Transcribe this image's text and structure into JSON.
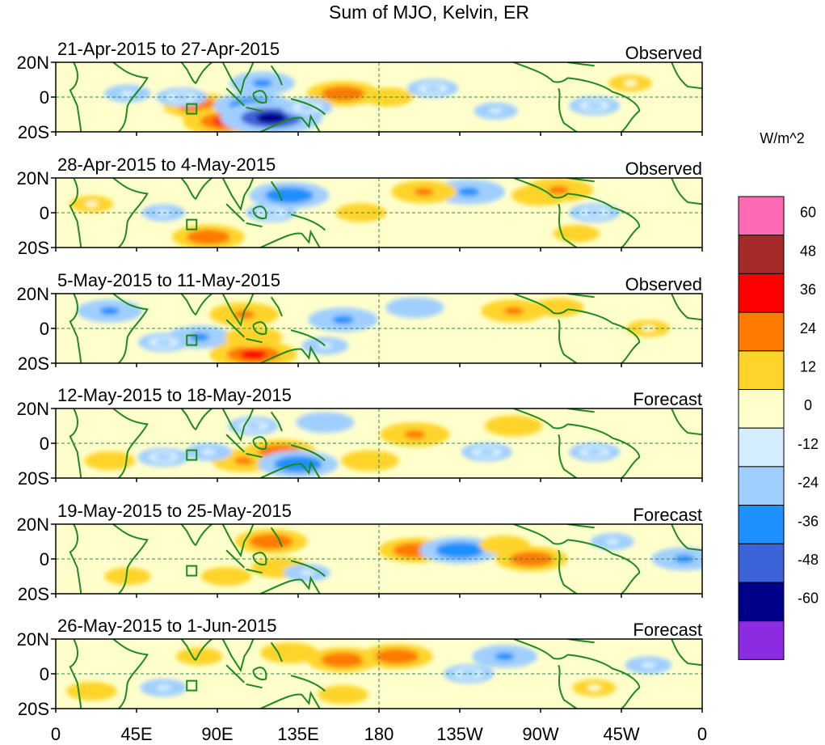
{
  "title": "Sum of MJO, Kelvin, ER",
  "colors": {
    "background": "#ffffff",
    "land": "#1e8a1e",
    "levels": [
      "#8b2be2",
      "#00008b",
      "#3c64d8",
      "#1e90ff",
      "#a0cfff",
      "#d4eeff",
      "#ffffcc",
      "#ffd42a",
      "#ff7a00",
      "#ff0000",
      "#a52a2a",
      "#ff69b4"
    ]
  },
  "colorbar": {
    "units": "W/m^2",
    "labels": [
      "60",
      "48",
      "36",
      "24",
      "12",
      "0",
      "-12",
      "-24",
      "-36",
      "-48",
      "-60"
    ]
  },
  "axes": {
    "y_ticks": [
      "20N",
      "0",
      "20S"
    ],
    "x_ticks": [
      "0",
      "45E",
      "90E",
      "135E",
      "180",
      "135W",
      "90W",
      "45W",
      "0"
    ]
  },
  "panels": [
    {
      "period": "21-Apr-2015 to 27-Apr-2015",
      "status": "Observed"
    },
    {
      "period": "28-Apr-2015 to 4-May-2015",
      "status": "Observed"
    },
    {
      "period": "5-May-2015 to 11-May-2015",
      "status": "Observed"
    },
    {
      "period": "12-May-2015 to 18-May-2015",
      "status": "Forecast"
    },
    {
      "period": "19-May-2015 to 25-May-2015",
      "status": "Forecast"
    },
    {
      "period": "26-May-2015 to 1-Jun-2015",
      "status": "Forecast"
    }
  ],
  "chart_data": {
    "type": "heatmap",
    "title": "Sum of MJO, Kelvin, ER",
    "units": "W/m^2",
    "x_range": [
      "0",
      "0"
    ],
    "y_range": [
      "20S",
      "20N"
    ],
    "levels": [
      -60,
      -48,
      -36,
      -24,
      -12,
      0,
      12,
      24,
      36,
      48,
      60
    ],
    "panels": [
      {
        "period": "21-Apr-2015 to 27-Apr-2015",
        "status": "Observed",
        "features": [
          {
            "lon": 80,
            "lat": -5,
            "value": 30
          },
          {
            "lon": 95,
            "lat": -14,
            "value": 40
          },
          {
            "lon": 110,
            "lat": -5,
            "value": -35
          },
          {
            "lon": 120,
            "lat": -12,
            "value": -50
          },
          {
            "lon": 115,
            "lat": 8,
            "value": -25
          },
          {
            "lon": 160,
            "lat": 2,
            "value": 30
          },
          {
            "lon": 185,
            "lat": 0,
            "value": 15
          },
          {
            "lon": 70,
            "lat": 0,
            "value": -15
          },
          {
            "lon": 210,
            "lat": 5,
            "value": -15
          },
          {
            "lon": 245,
            "lat": -8,
            "value": -10
          },
          {
            "lon": 300,
            "lat": -5,
            "value": -15
          },
          {
            "lon": 320,
            "lat": 8,
            "value": 10
          },
          {
            "lon": 40,
            "lat": 2,
            "value": -12
          },
          {
            "lon": 140,
            "lat": -6,
            "value": -15
          }
        ]
      },
      {
        "period": "28-Apr-2015 to 4-May-2015",
        "status": "Observed",
        "features": [
          {
            "lon": 85,
            "lat": -14,
            "value": 30
          },
          {
            "lon": 130,
            "lat": 10,
            "value": -35
          },
          {
            "lon": 120,
            "lat": 0,
            "value": -15
          },
          {
            "lon": 230,
            "lat": 12,
            "value": -30
          },
          {
            "lon": 205,
            "lat": 12,
            "value": 25
          },
          {
            "lon": 270,
            "lat": 10,
            "value": 20
          },
          {
            "lon": 280,
            "lat": 13,
            "value": 28
          },
          {
            "lon": 170,
            "lat": 0,
            "value": 15
          },
          {
            "lon": 300,
            "lat": 0,
            "value": -15
          },
          {
            "lon": 20,
            "lat": 5,
            "value": 10
          },
          {
            "lon": 60,
            "lat": 0,
            "value": -10
          },
          {
            "lon": 290,
            "lat": -12,
            "value": 12
          }
        ]
      },
      {
        "period": "5-May-2015 to 11-May-2015",
        "status": "Observed",
        "features": [
          {
            "lon": 30,
            "lat": 10,
            "value": -25
          },
          {
            "lon": 80,
            "lat": -5,
            "value": -25
          },
          {
            "lon": 60,
            "lat": -8,
            "value": -15
          },
          {
            "lon": 105,
            "lat": 8,
            "value": 28
          },
          {
            "lon": 110,
            "lat": -15,
            "value": 40
          },
          {
            "lon": 110,
            "lat": -5,
            "value": 20
          },
          {
            "lon": 160,
            "lat": 5,
            "value": -28
          },
          {
            "lon": 200,
            "lat": 12,
            "value": -20
          },
          {
            "lon": 150,
            "lat": -10,
            "value": -12
          },
          {
            "lon": 255,
            "lat": 10,
            "value": 25
          },
          {
            "lon": 280,
            "lat": 12,
            "value": 15
          },
          {
            "lon": 330,
            "lat": 0,
            "value": 10
          }
        ]
      },
      {
        "period": "12-May-2015 to 18-May-2015",
        "status": "Forecast",
        "features": [
          {
            "lon": 105,
            "lat": -10,
            "value": 25
          },
          {
            "lon": 125,
            "lat": -5,
            "value": 30
          },
          {
            "lon": 135,
            "lat": -12,
            "value": -35
          },
          {
            "lon": 110,
            "lat": 10,
            "value": -15
          },
          {
            "lon": 175,
            "lat": -10,
            "value": 20
          },
          {
            "lon": 200,
            "lat": 5,
            "value": 28
          },
          {
            "lon": 150,
            "lat": 12,
            "value": -20
          },
          {
            "lon": 255,
            "lat": 10,
            "value": 20
          },
          {
            "lon": 240,
            "lat": -5,
            "value": -15
          },
          {
            "lon": 60,
            "lat": -8,
            "value": -15
          },
          {
            "lon": 30,
            "lat": -10,
            "value": 15
          },
          {
            "lon": 85,
            "lat": -5,
            "value": -12
          },
          {
            "lon": 300,
            "lat": -5,
            "value": -15
          }
        ]
      },
      {
        "period": "19-May-2015 to 25-May-2015",
        "status": "Forecast",
        "features": [
          {
            "lon": 120,
            "lat": 10,
            "value": 30
          },
          {
            "lon": 125,
            "lat": -5,
            "value": 20
          },
          {
            "lon": 95,
            "lat": -10,
            "value": 15
          },
          {
            "lon": 200,
            "lat": 5,
            "value": 30
          },
          {
            "lon": 225,
            "lat": 5,
            "value": -35
          },
          {
            "lon": 265,
            "lat": 0,
            "value": 30
          },
          {
            "lon": 250,
            "lat": 8,
            "value": 15
          },
          {
            "lon": 350,
            "lat": 0,
            "value": -25
          },
          {
            "lon": 140,
            "lat": -8,
            "value": -12
          },
          {
            "lon": 40,
            "lat": -10,
            "value": 12
          },
          {
            "lon": 310,
            "lat": 10,
            "value": -10
          }
        ]
      },
      {
        "period": "26-May-2015 to 1-Jun-2015",
        "status": "Forecast",
        "features": [
          {
            "lon": 160,
            "lat": 8,
            "value": 30
          },
          {
            "lon": 190,
            "lat": 10,
            "value": 30
          },
          {
            "lon": 130,
            "lat": 12,
            "value": 20
          },
          {
            "lon": 250,
            "lat": 10,
            "value": -25
          },
          {
            "lon": 230,
            "lat": 0,
            "value": -15
          },
          {
            "lon": 160,
            "lat": -12,
            "value": 15
          },
          {
            "lon": 80,
            "lat": 10,
            "value": 12
          },
          {
            "lon": 60,
            "lat": -8,
            "value": -12
          },
          {
            "lon": 300,
            "lat": -8,
            "value": 10
          },
          {
            "lon": 330,
            "lat": 5,
            "value": -12
          },
          {
            "lon": 20,
            "lat": -10,
            "value": 15
          }
        ]
      }
    ]
  }
}
